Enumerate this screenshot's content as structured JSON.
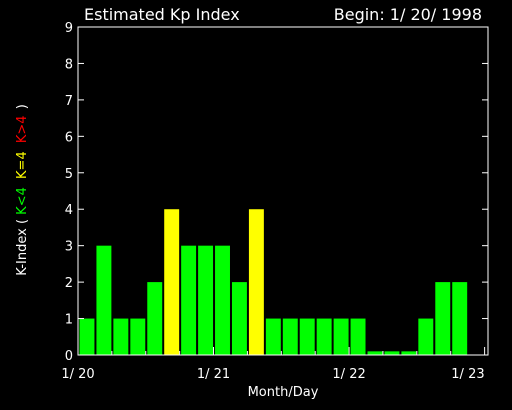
{
  "chart_data": {
    "type": "bar",
    "title": "Estimated Kp Index",
    "begin_label": "Begin: 1/ 20/ 1998",
    "xlabel": "Month/Day",
    "ylabel": {
      "prefix": "K-Index (",
      "low": "K<4",
      "mid": "K=4",
      "high": "K>4",
      "suffix": ")"
    },
    "ylim": [
      0,
      9
    ],
    "yticks": [
      "0",
      "1",
      "2",
      "3",
      "4",
      "5",
      "6",
      "7",
      "8",
      "9"
    ],
    "xticks": [
      "1/ 20",
      "1/ 21",
      "1/ 22",
      "1/ 23"
    ],
    "bins_per_day": 8,
    "values": [
      1,
      3,
      1,
      1,
      2,
      4,
      3,
      3,
      3,
      2,
      4,
      1,
      1,
      1,
      1,
      1,
      1,
      0.1,
      0.1,
      0.1,
      1,
      2,
      2
    ],
    "colors": {
      "low": "#00ff00",
      "equal": "#ffff00",
      "high": "#ff0000",
      "axis": "#ffffff",
      "background": "#000000"
    }
  }
}
